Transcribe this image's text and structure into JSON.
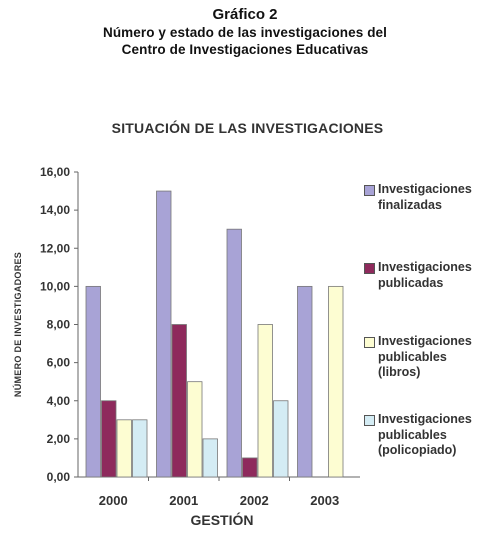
{
  "header": {
    "figure_label": "Gráfico 2",
    "caption_line1": "Número y estado de las investigaciones del",
    "caption_line2": "Centro de Investigaciones Educativas"
  },
  "chart_data": {
    "type": "bar",
    "title": "SITUACIÓN DE LAS INVESTIGACIONES",
    "xlabel": "GESTIÓN",
    "ylabel": "NÚMERO DE INVESTIGADORES",
    "categories": [
      "2000",
      "2001",
      "2002",
      "2003"
    ],
    "ylim": [
      0,
      16
    ],
    "yticks": [
      "0,00",
      "2,00",
      "4,00",
      "6,00",
      "8,00",
      "10,00",
      "12,00",
      "14,00",
      "16,00"
    ],
    "grid": false,
    "legend_position": "right",
    "series": [
      {
        "name": "Investigaciones finalizadas",
        "color": "#a8a3d6",
        "values": [
          10,
          15,
          13,
          10
        ]
      },
      {
        "name": "Investigaciones publicadas",
        "color": "#8e2a5c",
        "values": [
          4,
          8,
          1,
          0
        ]
      },
      {
        "name": "Investigaciones publicables (libros)",
        "color": "#fdfdd2",
        "values": [
          3,
          5,
          8,
          10
        ]
      },
      {
        "name": "Investigaciones publicables (policopiado)",
        "color": "#d4ecf4",
        "values": [
          3,
          2,
          4,
          0
        ]
      }
    ]
  }
}
